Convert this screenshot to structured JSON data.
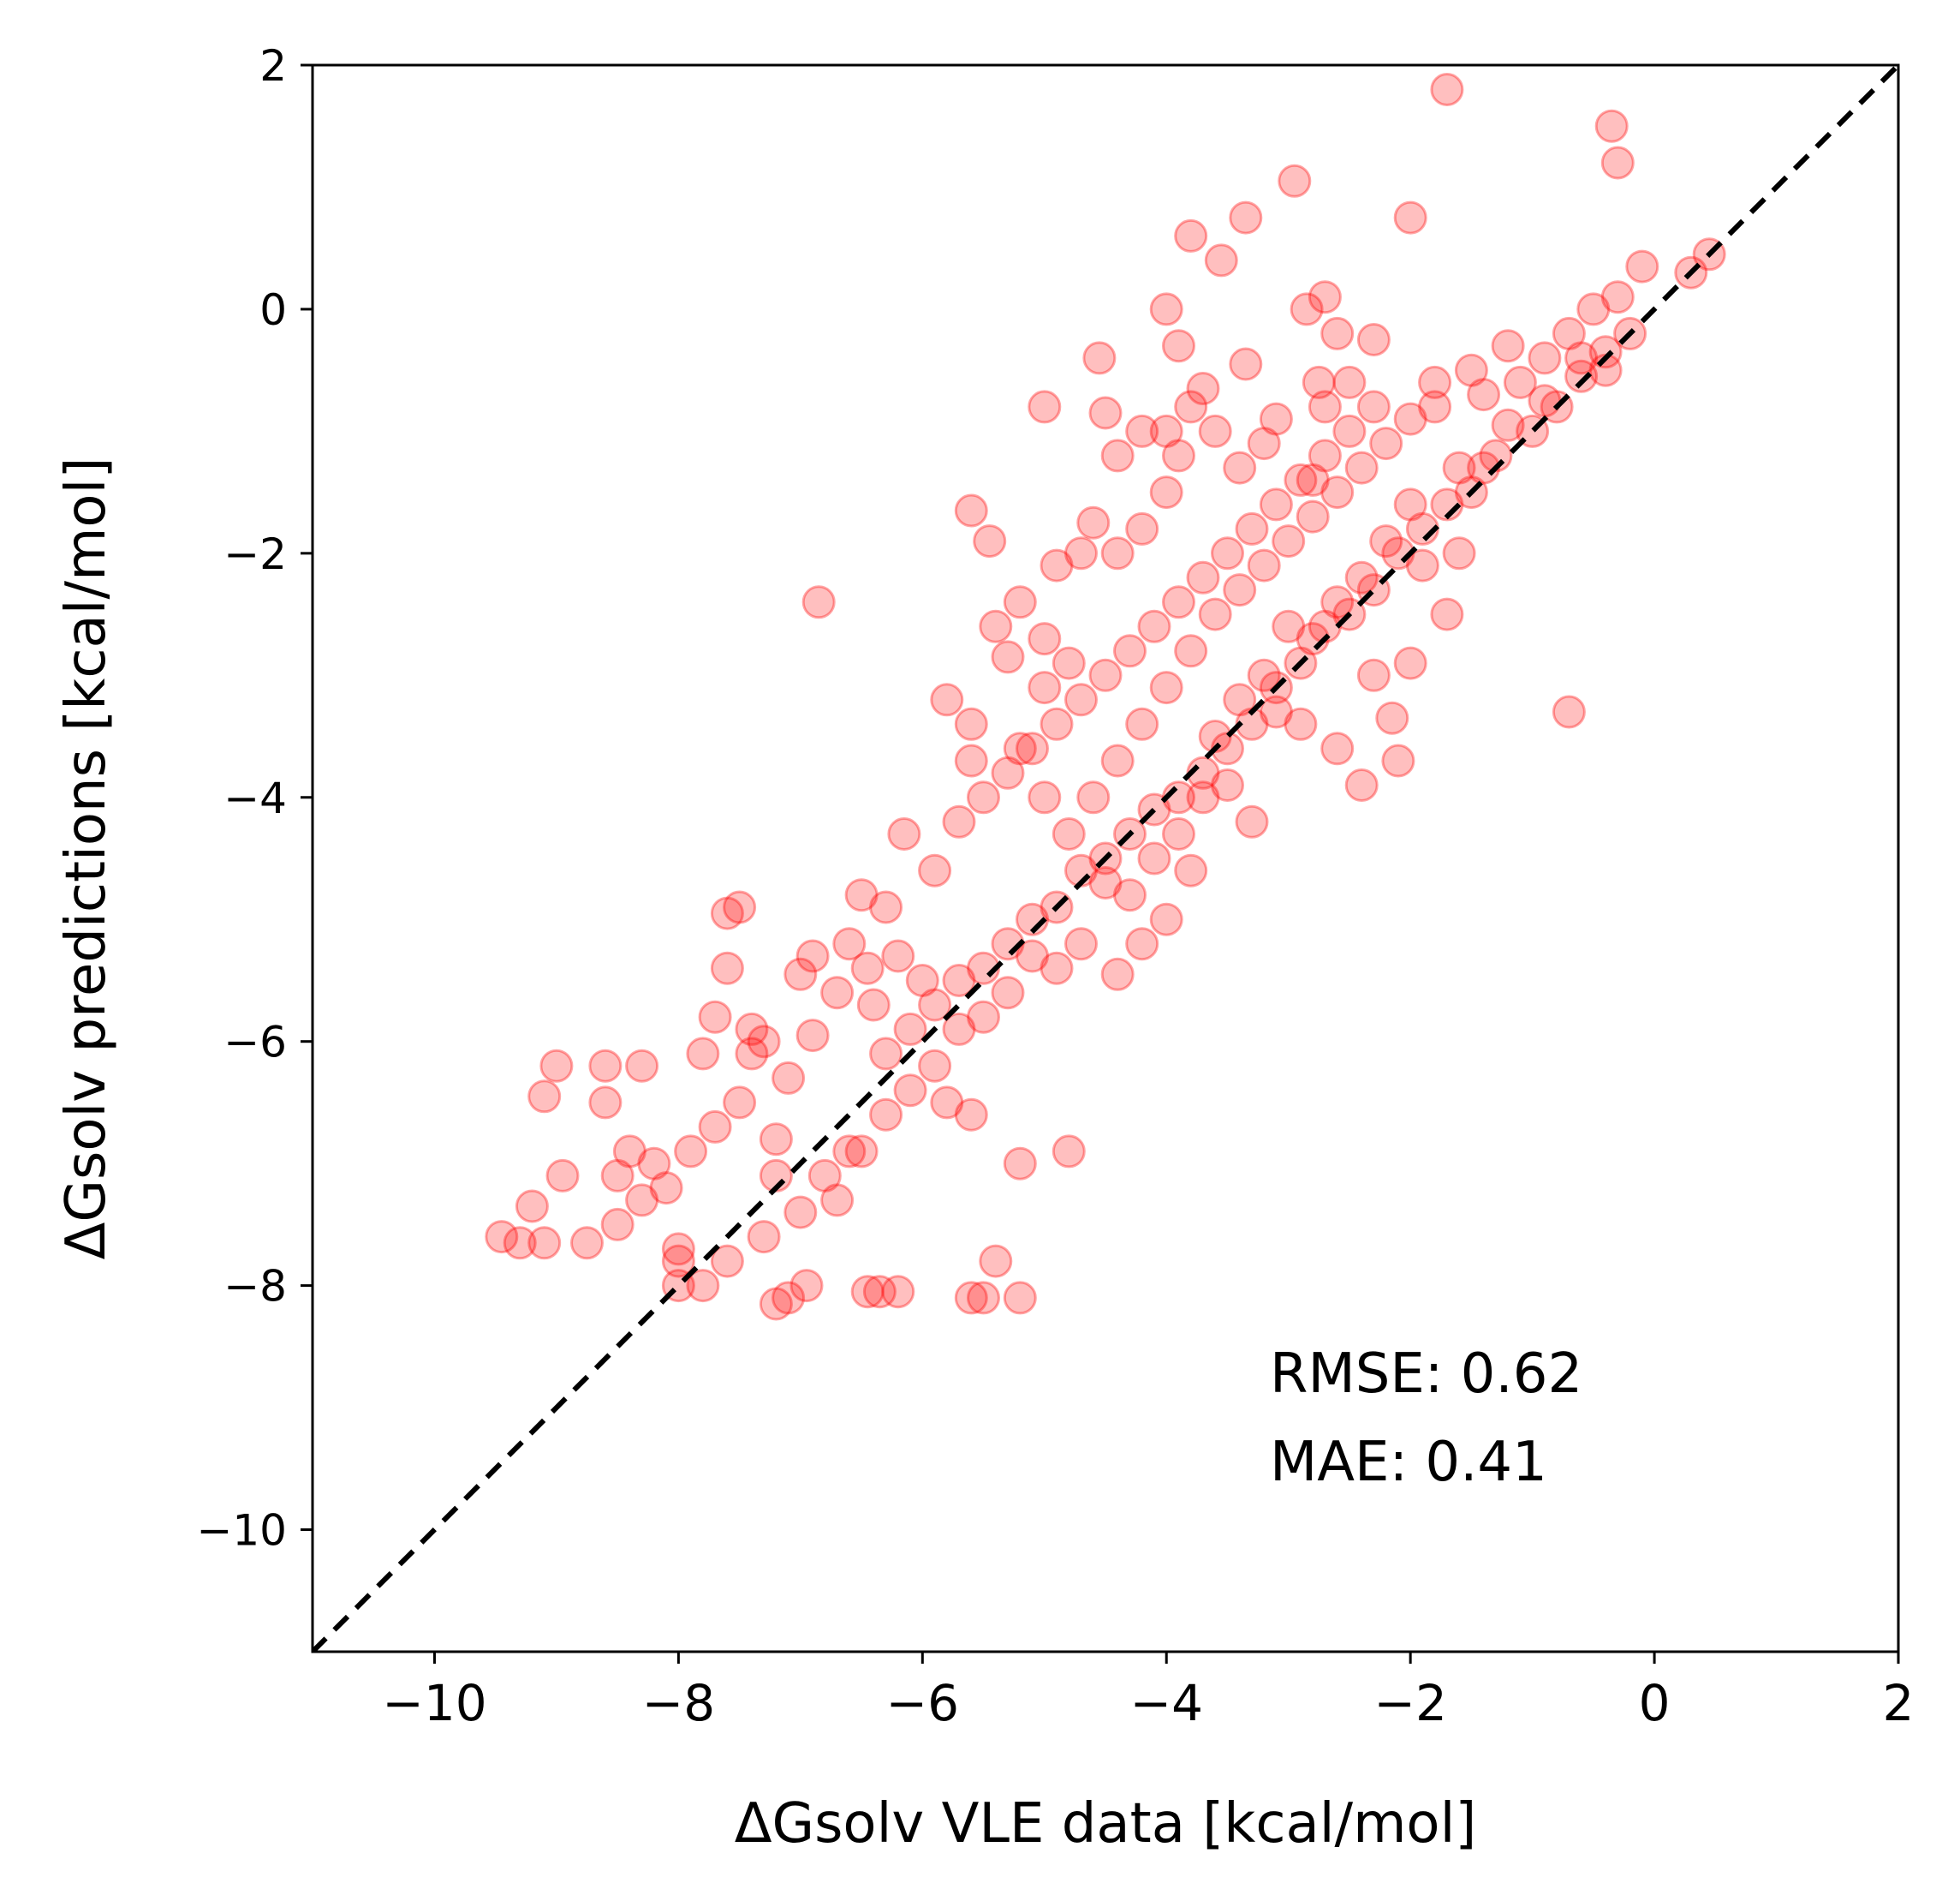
{
  "chart_data": {
    "type": "scatter",
    "xlabel": "ΔGsolv VLE data [kcal/mol]",
    "ylabel": "ΔGsolv predictions [kcal/mol]",
    "xlim": [
      -11,
      2
    ],
    "ylim": [
      -11,
      2
    ],
    "xticks": [
      -10,
      -8,
      -6,
      -4,
      -2,
      0,
      2
    ],
    "yticks": [
      -10,
      -8,
      -6,
      -4,
      -2,
      0,
      2
    ],
    "xtick_labels": [
      "−10",
      "−8",
      "−6",
      "−4",
      "−2",
      "0",
      "2"
    ],
    "ytick_labels": [
      "−10",
      "−8",
      "−6",
      "−4",
      "−2",
      "0",
      "2"
    ],
    "grid": false,
    "marker_color": "#ff0000",
    "marker_alpha": 0.25,
    "reference_line": {
      "style": "dashed",
      "color": "#000000",
      "from": [
        -11,
        -11
      ],
      "to": [
        2,
        2
      ]
    },
    "annotations": [
      "RMSE: 0.62",
      "MAE: 0.41"
    ],
    "points": [
      [
        -1.7,
        1.8
      ],
      [
        -0.35,
        1.5
      ],
      [
        -0.3,
        1.2
      ],
      [
        -2.95,
        1.05
      ],
      [
        -2.0,
        0.75
      ],
      [
        -3.35,
        0.75
      ],
      [
        -3.8,
        0.6
      ],
      [
        -3.55,
        0.4
      ],
      [
        -0.1,
        0.35
      ],
      [
        0.45,
        0.45
      ],
      [
        0.3,
        0.3
      ],
      [
        -2.7,
        0.1
      ],
      [
        -2.85,
        0.0
      ],
      [
        -4.0,
        0.0
      ],
      [
        -2.6,
        -0.2
      ],
      [
        -3.9,
        -0.3
      ],
      [
        -2.3,
        -0.25
      ],
      [
        -4.55,
        -0.4
      ],
      [
        -3.35,
        -0.45
      ],
      [
        -2.75,
        -0.6
      ],
      [
        -5.0,
        -0.8
      ],
      [
        -6.85,
        -2.4
      ],
      [
        -5.6,
        -1.65
      ],
      [
        -5.45,
        -1.9
      ],
      [
        -5.4,
        -2.6
      ],
      [
        -5.3,
        -2.85
      ],
      [
        -5.0,
        -3.1
      ],
      [
        -0.7,
        -3.3
      ],
      [
        -5.6,
        -3.7
      ],
      [
        -6.15,
        -4.3
      ],
      [
        -7.5,
        -4.9
      ],
      [
        -7.6,
        -4.95
      ],
      [
        -7.6,
        -5.4
      ],
      [
        -6.45,
        -5.4
      ],
      [
        -7.0,
        -5.45
      ],
      [
        -7.7,
        -5.8
      ],
      [
        -6.9,
        -5.95
      ],
      [
        -9.0,
        -6.2
      ],
      [
        -8.6,
        -6.2
      ],
      [
        -8.3,
        -6.2
      ],
      [
        -7.4,
        -6.1
      ],
      [
        -9.1,
        -6.45
      ],
      [
        -8.6,
        -6.5
      ],
      [
        -7.2,
        -6.8
      ],
      [
        -6.5,
        -6.9
      ],
      [
        -4.8,
        -6.9
      ],
      [
        -5.2,
        -7.0
      ],
      [
        -8.95,
        -7.1
      ],
      [
        -8.5,
        -7.1
      ],
      [
        -8.2,
        -7.0
      ],
      [
        -7.2,
        -7.1
      ],
      [
        -6.7,
        -7.3
      ],
      [
        -9.2,
        -7.35
      ],
      [
        -8.5,
        -7.5
      ],
      [
        -8.0,
        -7.7
      ],
      [
        -9.45,
        -7.6
      ],
      [
        -9.3,
        -7.65
      ],
      [
        -9.1,
        -7.65
      ],
      [
        -8.75,
        -7.65
      ],
      [
        -8.0,
        -7.8
      ],
      [
        -8.0,
        -8.0
      ],
      [
        -5.4,
        -7.8
      ],
      [
        -6.45,
        -8.05
      ],
      [
        -6.35,
        -8.05
      ],
      [
        -6.2,
        -8.05
      ],
      [
        -6.95,
        -8.0
      ],
      [
        -7.1,
        -8.1
      ],
      [
        -7.2,
        -8.15
      ],
      [
        -5.6,
        -8.1
      ],
      [
        -5.5,
        -8.1
      ],
      [
        -5.2,
        -8.1
      ],
      [
        -1.5,
        -1.5
      ],
      [
        -1.8,
        -0.6
      ],
      [
        -1.5,
        -0.5
      ],
      [
        -1.2,
        -0.3
      ],
      [
        -0.6,
        -0.4
      ],
      [
        -0.4,
        -0.5
      ],
      [
        -0.8,
        -0.8
      ],
      [
        -1.0,
        -1.0
      ],
      [
        -1.3,
        -1.2
      ],
      [
        -1.6,
        -1.3
      ],
      [
        -2.0,
        -1.6
      ],
      [
        -2.2,
        -1.9
      ],
      [
        -1.9,
        -2.1
      ],
      [
        -1.7,
        -2.5
      ],
      [
        -1.6,
        -2.0
      ],
      [
        -2.4,
        -2.2
      ],
      [
        -2.6,
        -2.4
      ],
      [
        -2.8,
        -2.7
      ],
      [
        -3.0,
        -2.6
      ],
      [
        -3.2,
        -3.0
      ],
      [
        -3.1,
        -3.3
      ],
      [
        -2.9,
        -3.4
      ],
      [
        -2.6,
        -3.6
      ],
      [
        -2.4,
        -3.9
      ],
      [
        -2.1,
        -3.7
      ],
      [
        -2.3,
        -3.0
      ],
      [
        -2.15,
        -3.35
      ],
      [
        -2.0,
        -2.9
      ],
      [
        -3.4,
        -3.2
      ],
      [
        -3.6,
        -3.5
      ],
      [
        -3.5,
        -3.9
      ],
      [
        -3.3,
        -4.2
      ],
      [
        -3.7,
        -4.0
      ],
      [
        -3.9,
        -4.3
      ],
      [
        -3.8,
        -4.6
      ],
      [
        -4.1,
        -4.5
      ],
      [
        -4.3,
        -4.8
      ],
      [
        -4.5,
        -4.7
      ],
      [
        -4.2,
        -5.2
      ],
      [
        -4.4,
        -5.45
      ],
      [
        -4.0,
        -5.0
      ],
      [
        -4.7,
        -5.2
      ],
      [
        -4.9,
        -5.4
      ],
      [
        -5.1,
        -5.3
      ],
      [
        -5.3,
        -5.6
      ],
      [
        -5.5,
        -5.8
      ],
      [
        -5.7,
        -5.9
      ],
      [
        -5.9,
        -6.2
      ],
      [
        -6.1,
        -6.4
      ],
      [
        -6.3,
        -6.6
      ],
      [
        -5.8,
        -6.5
      ],
      [
        -5.6,
        -6.6
      ],
      [
        -6.6,
        -6.9
      ],
      [
        -6.8,
        -7.1
      ],
      [
        -7.0,
        -7.4
      ],
      [
        -7.3,
        -7.6
      ],
      [
        -7.6,
        -7.8
      ],
      [
        -7.8,
        -8.0
      ],
      [
        -6.0,
        -5.5
      ],
      [
        -6.2,
        -5.3
      ],
      [
        -6.3,
        -4.9
      ],
      [
        -6.5,
        -4.8
      ],
      [
        -6.6,
        -5.2
      ],
      [
        -6.4,
        -5.7
      ],
      [
        -6.7,
        -5.6
      ],
      [
        -6.9,
        -5.3
      ],
      [
        -7.1,
        -6.3
      ],
      [
        -7.3,
        -6.0
      ],
      [
        -7.5,
        -6.5
      ],
      [
        -7.7,
        -6.7
      ],
      [
        -7.9,
        -6.9
      ],
      [
        -8.1,
        -7.2
      ],
      [
        -8.3,
        -7.3
      ],
      [
        -8.4,
        -6.9
      ],
      [
        -7.8,
        -6.1
      ],
      [
        -7.4,
        -5.9
      ],
      [
        -5.9,
        -4.6
      ],
      [
        -5.7,
        -4.2
      ],
      [
        -5.5,
        -4.0
      ],
      [
        -5.3,
        -3.8
      ],
      [
        -5.1,
        -3.6
      ],
      [
        -4.9,
        -3.4
      ],
      [
        -4.7,
        -3.2
      ],
      [
        -4.5,
        -3.0
      ],
      [
        -4.3,
        -2.8
      ],
      [
        -4.1,
        -2.6
      ],
      [
        -3.9,
        -2.4
      ],
      [
        -3.7,
        -2.2
      ],
      [
        -3.5,
        -2.0
      ],
      [
        -3.3,
        -1.8
      ],
      [
        -3.1,
        -1.6
      ],
      [
        -2.9,
        -1.4
      ],
      [
        -2.7,
        -1.2
      ],
      [
        -2.5,
        -1.0
      ],
      [
        -4.4,
        -2.0
      ],
      [
        -4.2,
        -1.8
      ],
      [
        -4.0,
        -1.5
      ],
      [
        -3.9,
        -1.2
      ],
      [
        -4.0,
        -1.0
      ],
      [
        -3.8,
        -0.8
      ],
      [
        -3.7,
        -0.65
      ],
      [
        -3.6,
        -1.0
      ],
      [
        -4.2,
        -1.0
      ],
      [
        -4.5,
        -0.85
      ],
      [
        -4.4,
        -1.2
      ],
      [
        -4.6,
        -1.75
      ],
      [
        -4.7,
        -2.0
      ],
      [
        -4.9,
        -2.1
      ],
      [
        -5.2,
        -2.4
      ],
      [
        -5.0,
        -2.7
      ],
      [
        -4.8,
        -2.9
      ],
      [
        -5.6,
        -3.4
      ],
      [
        -5.8,
        -3.2
      ],
      [
        -5.2,
        -3.6
      ],
      [
        -5.0,
        -4.0
      ],
      [
        -4.8,
        -4.3
      ],
      [
        -4.6,
        -4.0
      ],
      [
        -4.4,
        -3.7
      ],
      [
        -4.2,
        -3.4
      ],
      [
        -4.0,
        -3.1
      ],
      [
        -3.8,
        -2.8
      ],
      [
        -3.6,
        -2.5
      ],
      [
        -3.4,
        -2.3
      ],
      [
        -3.2,
        -2.1
      ],
      [
        -3.0,
        -1.9
      ],
      [
        -2.8,
        -1.7
      ],
      [
        -2.6,
        -1.5
      ],
      [
        -2.4,
        -1.3
      ],
      [
        -2.2,
        -1.1
      ],
      [
        -2.0,
        -0.9
      ],
      [
        -1.8,
        -0.8
      ],
      [
        -1.4,
        -0.7
      ],
      [
        -1.1,
        -0.6
      ],
      [
        -0.9,
        -0.4
      ],
      [
        -0.7,
        -0.2
      ],
      [
        -0.5,
        0.0
      ],
      [
        -0.3,
        0.1
      ],
      [
        -0.2,
        -0.2
      ],
      [
        -0.4,
        -0.35
      ],
      [
        -0.6,
        -0.55
      ],
      [
        -0.9,
        -0.75
      ],
      [
        -1.2,
        -0.95
      ],
      [
        -1.4,
        -1.3
      ],
      [
        -1.7,
        -1.6
      ],
      [
        -1.9,
        -1.8
      ],
      [
        -2.1,
        -2.0
      ],
      [
        -2.3,
        -2.3
      ],
      [
        -2.5,
        -2.5
      ],
      [
        -2.7,
        -2.6
      ],
      [
        -2.9,
        -2.9
      ],
      [
        -3.1,
        -3.1
      ],
      [
        -3.3,
        -3.4
      ],
      [
        -3.5,
        -3.6
      ],
      [
        -3.7,
        -3.8
      ],
      [
        -3.9,
        -4.0
      ],
      [
        -4.1,
        -4.1
      ],
      [
        -4.3,
        -4.3
      ],
      [
        -4.5,
        -4.5
      ],
      [
        -4.7,
        -4.6
      ],
      [
        -4.9,
        -4.9
      ],
      [
        -5.1,
        -5.0
      ],
      [
        -5.3,
        -5.2
      ],
      [
        -5.5,
        -5.4
      ],
      [
        -5.7,
        -5.5
      ],
      [
        -5.9,
        -5.7
      ],
      [
        -6.1,
        -5.9
      ],
      [
        -6.3,
        -6.1
      ],
      [
        -2.5,
        -0.6
      ],
      [
        -2.3,
        -0.8
      ],
      [
        -2.8,
        -1.4
      ],
      [
        -3.2,
        -1.1
      ],
      [
        -3.4,
        -1.3
      ],
      [
        -3.1,
        -0.9
      ],
      [
        -2.7,
        -0.8
      ]
    ]
  }
}
